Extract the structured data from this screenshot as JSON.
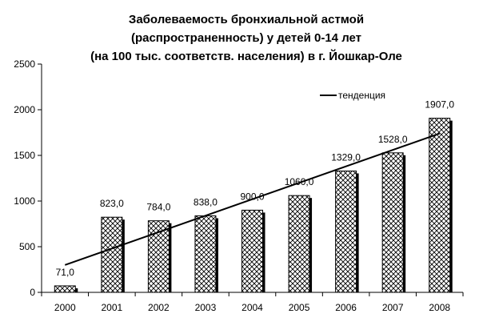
{
  "chart_data": {
    "type": "bar",
    "title_lines": [
      "Заболеваемость бронхиальной астмой",
      "(распространенность) у детей 0-14 лет",
      "(на 100 тыс. соответств. населения) в г. Йошкар-Оле"
    ],
    "categories": [
      "2000",
      "2001",
      "2002",
      "2003",
      "2004",
      "2005",
      "2006",
      "2007",
      "2008"
    ],
    "values": [
      71.0,
      823.0,
      784.0,
      838.0,
      900.0,
      1060.0,
      1329.0,
      1528.0,
      1907.0
    ],
    "value_labels": [
      "71,0",
      "823,0",
      "784,0",
      "838,0",
      "900,0",
      "1060,0",
      "1329,0",
      "1528,0",
      "1907,0"
    ],
    "y_ticks": [
      0,
      500,
      1000,
      1500,
      2000,
      2500
    ],
    "ylim": [
      0,
      2500
    ],
    "trendline": {
      "name": "тенденция",
      "start": 300,
      "end": 1740
    },
    "legend_position": "top-right",
    "bar_fill": "crosshatch",
    "colors": {
      "bar_fill": "#ffffff",
      "bar_hatch": "#000000",
      "bar_shadow": "#000000",
      "trend": "#000000",
      "axis": "#000000"
    }
  }
}
